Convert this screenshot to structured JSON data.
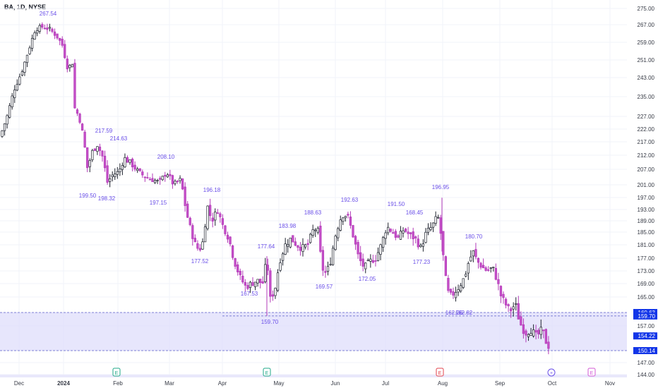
{
  "header": {
    "symbol": "BA, 1D, NYSE"
  },
  "colors": {
    "up": "#1e222d",
    "down": "#b33bb8",
    "up_fill": "#ffffff",
    "down_fill": "#c54fc8",
    "label": "#6a4fe8",
    "band": "#dddcfb",
    "grid": "#f0f3fa",
    "axis_text": "#363a45",
    "price_tag": "#1235e8"
  },
  "chart_data": {
    "type": "candlestick",
    "y_axis": {
      "ticks": [
        "275.00",
        "267.00",
        "259.00",
        "251.00",
        "243.00",
        "235.00",
        "227.00",
        "222.00",
        "217.00",
        "212.00",
        "207.00",
        "201.00",
        "197.00",
        "193.00",
        "189.00",
        "185.00",
        "181.00",
        "177.00",
        "173.00",
        "169.00",
        "165.00",
        "157.00",
        "147.00",
        "144.00"
      ]
    },
    "x_axis": {
      "ticks": [
        "Dec",
        "2024",
        "Feb",
        "Mar",
        "Apr",
        "May",
        "Jun",
        "Jul",
        "Aug",
        "Sep",
        "Oct",
        "Nov"
      ]
    },
    "price_tags": [
      "160.63",
      "159.70",
      "154.22",
      "150.14"
    ],
    "extra_tag": "162.82",
    "extra_tag_prefix": "162.26",
    "high_low_labels": [
      {
        "text": "267.54"
      },
      {
        "text": "217.59"
      },
      {
        "text": "214.63"
      },
      {
        "text": "208.10"
      },
      {
        "text": "199.50"
      },
      {
        "text": "198.32"
      },
      {
        "text": "197.15"
      },
      {
        "text": "196.18"
      },
      {
        "text": "177.52"
      },
      {
        "text": "183.98"
      },
      {
        "text": "177.64"
      },
      {
        "text": "188.63"
      },
      {
        "text": "167.53"
      },
      {
        "text": "159.70"
      },
      {
        "text": "169.57"
      },
      {
        "text": "192.63"
      },
      {
        "text": "172.05"
      },
      {
        "text": "191.50"
      },
      {
        "text": "168.45"
      },
      {
        "text": "177.23"
      },
      {
        "text": "196.95"
      },
      {
        "text": "180.70"
      }
    ],
    "event_markers": [
      {
        "label": "E",
        "color": "#22a88a"
      },
      {
        "label": "E",
        "color": "#22a88a"
      },
      {
        "label": "E",
        "color": "#e2434c"
      },
      {
        "label": "+",
        "color": "#6a4fe8"
      },
      {
        "label": "E",
        "color": "#d35ad6"
      }
    ],
    "support_band": [
      150.14,
      160.63
    ],
    "candles_ohlc": "approximate daily OHLC from Nov 2023 to Oct 2024, generated in script"
  }
}
